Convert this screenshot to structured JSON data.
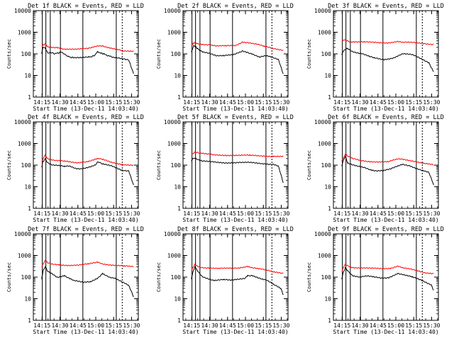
{
  "figure": {
    "xlabel": "Start Time (13-Dec-11 14:03:40)",
    "ylabel": "Counts/sec",
    "xticks": [
      "14:15",
      "14:30",
      "14:45",
      "15:00",
      "15:15",
      "15:30"
    ],
    "yticks": [
      "1",
      "10",
      "100",
      "1000",
      "10000"
    ],
    "colors": {
      "events": "#000000",
      "lld": "#ff0000",
      "axes": "#000000",
      "background": "#ffffff"
    }
  },
  "chart_data": [
    {
      "type": "line",
      "title": "Det 1f BLACK = Events, RED = LLD",
      "ylim": [
        1,
        10000
      ],
      "series": [
        {
          "name": "Events",
          "color": "#000000",
          "x": [
            11,
            12,
            14,
            16,
            20,
            22,
            27,
            33,
            38,
            44,
            50,
            55,
            58,
            60,
            63,
            70,
            74,
            84,
            88
          ],
          "y": [
            100,
            200,
            180,
            110,
            115,
            100,
            120,
            75,
            65,
            65,
            70,
            80,
            130,
            110,
            100,
            70,
            65,
            50,
            12
          ]
        },
        {
          "name": "LLD",
          "color": "#ff0000",
          "x": [
            11,
            14,
            16,
            20,
            24,
            30,
            40,
            50,
            58,
            62,
            68,
            74,
            80,
            88
          ],
          "y": [
            220,
            300,
            210,
            200,
            200,
            170,
            160,
            175,
            240,
            240,
            190,
            160,
            130,
            130
          ]
        }
      ]
    },
    {
      "type": "line",
      "title": "Det 2f BLACK = Events, RED = LLD",
      "ylim": [
        1,
        10000
      ],
      "series": [
        {
          "name": "Events",
          "color": "#000000",
          "x": [
            11,
            13,
            16,
            20,
            26,
            32,
            38,
            46,
            54,
            58,
            62,
            68,
            74,
            84,
            88
          ],
          "y": [
            120,
            250,
            180,
            130,
            110,
            80,
            80,
            90,
            140,
            120,
            100,
            70,
            80,
            55,
            12
          ]
        },
        {
          "name": "LLD",
          "color": "#ff0000",
          "x": [
            11,
            14,
            16,
            20,
            26,
            32,
            40,
            48,
            54,
            60,
            66,
            72,
            80,
            88
          ],
          "y": [
            250,
            350,
            300,
            280,
            270,
            230,
            230,
            240,
            360,
            330,
            280,
            220,
            170,
            150
          ]
        }
      ]
    },
    {
      "type": "line",
      "title": "Det 3f BLACK = Events, RED = LLD",
      "ylim": [
        1,
        10000
      ],
      "series": [
        {
          "name": "Events",
          "color": "#000000",
          "x": [
            11,
            13,
            16,
            20,
            24,
            28,
            34,
            38,
            46,
            54,
            58,
            62,
            70,
            76,
            84,
            88
          ],
          "y": [
            90,
            150,
            180,
            130,
            110,
            100,
            75,
            65,
            55,
            65,
            80,
            100,
            90,
            65,
            40,
            15
          ]
        },
        {
          "name": "LLD",
          "color": "#ff0000",
          "x": [
            11,
            14,
            18,
            22,
            30,
            40,
            50,
            58,
            62,
            70,
            80,
            88
          ],
          "y": [
            400,
            450,
            370,
            360,
            350,
            330,
            330,
            380,
            340,
            330,
            300,
            280
          ]
        }
      ]
    },
    {
      "type": "line",
      "title": "Det 4f BLACK = Events, RED = LLD",
      "ylim": [
        1,
        10000
      ],
      "series": [
        {
          "name": "Events",
          "color": "#000000",
          "x": [
            11,
            12,
            14,
            16,
            20,
            24,
            30,
            34,
            40,
            44,
            50,
            56,
            58,
            62,
            70,
            78,
            84,
            88
          ],
          "y": [
            80,
            150,
            200,
            130,
            100,
            95,
            85,
            90,
            70,
            70,
            80,
            100,
            140,
            110,
            90,
            60,
            55,
            12
          ]
        },
        {
          "name": "LLD",
          "color": "#ff0000",
          "x": [
            11,
            14,
            16,
            22,
            30,
            40,
            50,
            58,
            62,
            70,
            78,
            88
          ],
          "y": [
            150,
            300,
            200,
            160,
            150,
            130,
            150,
            200,
            180,
            130,
            110,
            100
          ]
        }
      ]
    },
    {
      "type": "line",
      "title": "Det 5f BLACK = Events, RED = LLD",
      "ylim": [
        1,
        10000
      ],
      "series": [
        {
          "name": "Events",
          "color": "#000000",
          "x": [
            11,
            12,
            14,
            16,
            20,
            30,
            40,
            50,
            60,
            70,
            80,
            84,
            88
          ],
          "y": [
            150,
            200,
            210,
            180,
            150,
            140,
            130,
            130,
            130,
            120,
            110,
            90,
            15
          ]
        },
        {
          "name": "LLD",
          "color": "#ff0000",
          "x": [
            11,
            14,
            18,
            24,
            30,
            40,
            50,
            60,
            70,
            80,
            88
          ],
          "y": [
            300,
            400,
            350,
            320,
            300,
            290,
            280,
            280,
            270,
            260,
            250
          ]
        }
      ]
    },
    {
      "type": "line",
      "title": "Det 6f BLACK = Events, RED = LLD",
      "ylim": [
        1,
        10000
      ],
      "series": [
        {
          "name": "Events",
          "color": "#000000",
          "x": [
            11,
            12,
            14,
            16,
            20,
            24,
            30,
            36,
            40,
            46,
            52,
            58,
            62,
            68,
            74,
            84,
            88
          ],
          "y": [
            90,
            150,
            250,
            120,
            100,
            90,
            80,
            60,
            55,
            55,
            65,
            90,
            110,
            95,
            70,
            45,
            12
          ]
        },
        {
          "name": "LLD",
          "color": "#ff0000",
          "x": [
            11,
            14,
            16,
            20,
            26,
            34,
            42,
            50,
            58,
            62,
            70,
            80,
            88
          ],
          "y": [
            150,
            320,
            250,
            200,
            170,
            150,
            140,
            140,
            190,
            190,
            160,
            120,
            100
          ]
        }
      ]
    },
    {
      "type": "line",
      "title": "Det 7f BLACK = Events, RED = LLD",
      "ylim": [
        1,
        10000
      ],
      "series": [
        {
          "name": "Events",
          "color": "#000000",
          "x": [
            11,
            12,
            14,
            16,
            20,
            24,
            30,
            34,
            38,
            46,
            52,
            58,
            62,
            68,
            72,
            78,
            84,
            88
          ],
          "y": [
            80,
            180,
            300,
            180,
            140,
            100,
            120,
            90,
            70,
            55,
            60,
            90,
            150,
            100,
            90,
            60,
            40,
            12
          ]
        },
        {
          "name": "LLD",
          "color": "#ff0000",
          "x": [
            11,
            14,
            16,
            20,
            26,
            34,
            42,
            50,
            58,
            62,
            70,
            80,
            88
          ],
          "y": [
            300,
            600,
            450,
            400,
            380,
            350,
            350,
            400,
            500,
            420,
            360,
            320,
            300
          ]
        }
      ]
    },
    {
      "type": "line",
      "title": "Det 8f BLACK = Events, RED = LLD",
      "ylim": [
        1,
        10000
      ],
      "series": [
        {
          "name": "Events",
          "color": "#000000",
          "x": [
            11,
            12,
            14,
            16,
            20,
            24,
            30,
            38,
            44,
            50,
            56,
            58,
            62,
            70,
            74,
            80,
            86,
            88
          ],
          "y": [
            80,
            150,
            300,
            200,
            110,
            90,
            70,
            75,
            70,
            80,
            90,
            120,
            120,
            80,
            70,
            45,
            30,
            15
          ]
        },
        {
          "name": "LLD",
          "color": "#ff0000",
          "x": [
            11,
            14,
            16,
            20,
            26,
            34,
            42,
            50,
            58,
            62,
            70,
            80,
            88
          ],
          "y": [
            200,
            400,
            320,
            280,
            270,
            250,
            250,
            260,
            320,
            280,
            230,
            170,
            150
          ]
        }
      ]
    },
    {
      "type": "line",
      "title": "Det 9f BLACK = Events, RED = LLD",
      "ylim": [
        1,
        10000
      ],
      "series": [
        {
          "name": "Events",
          "color": "#000000",
          "x": [
            11,
            12,
            14,
            16,
            20,
            26,
            32,
            38,
            44,
            50,
            58,
            62,
            70,
            78,
            86,
            88
          ],
          "y": [
            80,
            150,
            280,
            200,
            120,
            100,
            110,
            100,
            90,
            95,
            150,
            130,
            100,
            70,
            45,
            25
          ]
        },
        {
          "name": "LLD",
          "color": "#ff0000",
          "x": [
            11,
            14,
            16,
            20,
            28,
            36,
            44,
            52,
            58,
            62,
            70,
            80,
            88
          ],
          "y": [
            200,
            400,
            350,
            280,
            260,
            250,
            250,
            260,
            330,
            270,
            220,
            160,
            150
          ]
        }
      ]
    }
  ],
  "time_axis": {
    "min": 4,
    "max": 92,
    "ticks": [
      11.33,
      26.33,
      41.33,
      56.33,
      71.33,
      86.33
    ]
  }
}
